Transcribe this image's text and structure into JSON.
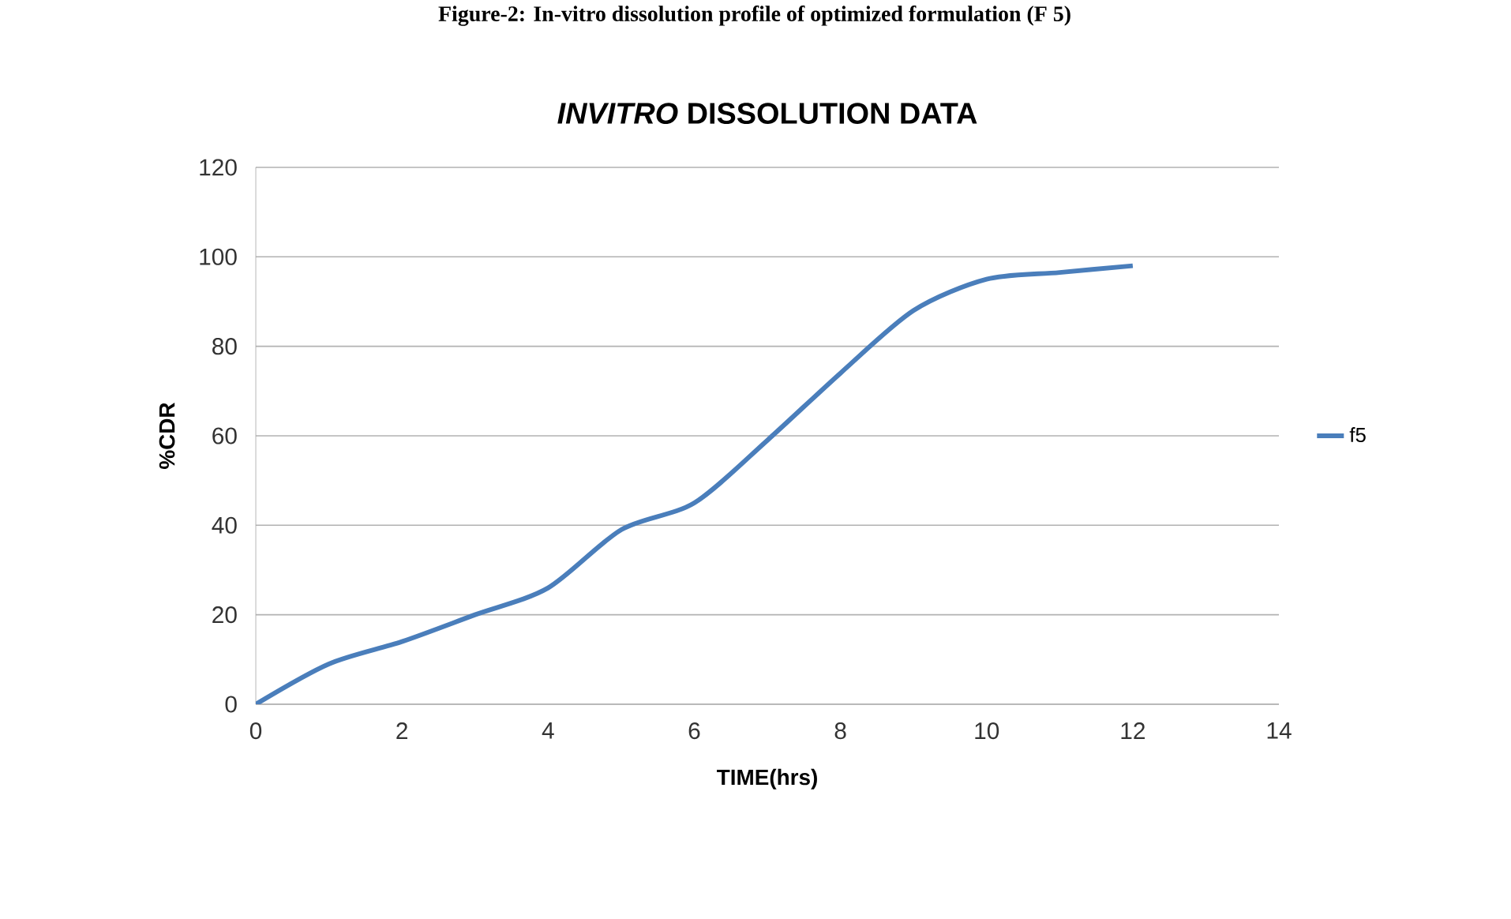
{
  "chart_data": {
    "type": "line",
    "title": "*INVITRO* DISSOLUTION DATA",
    "xlabel": "TIME(hrs)",
    "ylabel": "%CDR",
    "annotations": [
      "Figure-2: In-vitro dissolution profile of optimized formulation (F 5)"
    ],
    "x": [
      0,
      1,
      2,
      3,
      4,
      5,
      6,
      7,
      8,
      9,
      10,
      11,
      12
    ],
    "series": [
      {
        "name": "f5",
        "color": "#4a7ebb",
        "values": [
          0,
          9,
          14,
          20,
          26,
          39,
          45,
          59,
          74,
          88,
          95,
          96.5,
          98
        ]
      }
    ],
    "xlim": [
      0,
      14
    ],
    "xticks": [
      0,
      2,
      4,
      6,
      8,
      10,
      12,
      14
    ],
    "ylim": [
      0,
      120
    ],
    "yticks": [
      0,
      20,
      40,
      60,
      80,
      100,
      120
    ],
    "grid": "y",
    "legend": "right",
    "marker": "none",
    "line_style": "solid"
  }
}
